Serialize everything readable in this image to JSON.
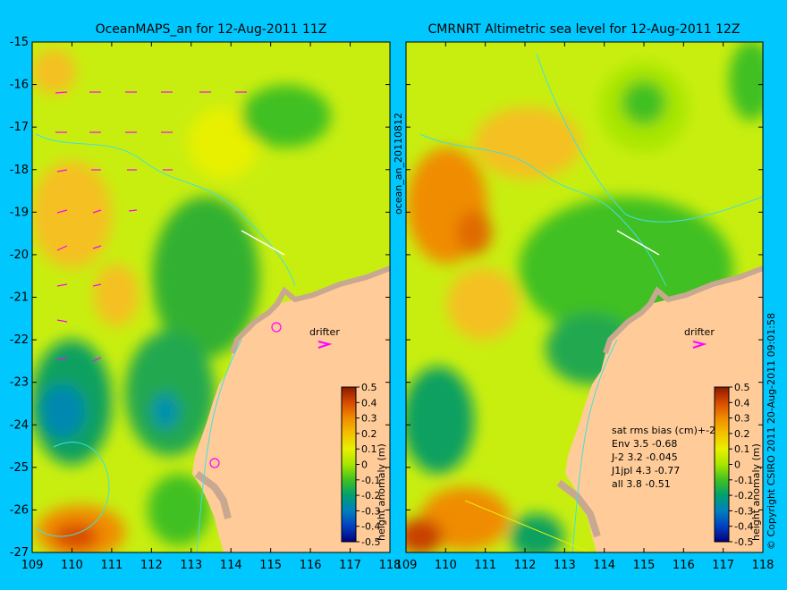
{
  "left_panel": {
    "title": "OceanMAPS_an for 12-Aug-2011 11Z",
    "drifter_label": "drifter",
    "colorbar_label": "height anomaly (m)",
    "side_label": "ocean_an_20110812"
  },
  "right_panel": {
    "title": "CMRNRT Altimetric sea level  for 12-Aug-2011 12Z",
    "drifter_label": "drifter",
    "colorbar_label": "height anomaly (m)",
    "stats_header": "sat rms bias (cm)+-20",
    "stats": [
      "Env   3.5 -0.68",
      "J-2   3.2 -0.045",
      "J1jpl 4.3 -0.77",
      "all 3.8 -0.51"
    ]
  },
  "copyright": "© Copyright CSIRO 2011  20-Aug-2011 09:01:58",
  "axes": {
    "lat_ticks": [
      "-15",
      "-16",
      "-17",
      "-18",
      "-19",
      "-20",
      "-21",
      "-22",
      "-23",
      "-24",
      "-25",
      "-26",
      "-27"
    ],
    "lon_ticks": [
      "109",
      "110",
      "111",
      "112",
      "113",
      "114",
      "115",
      "116",
      "117",
      "118"
    ]
  },
  "colorbar_ticks": [
    "0.5",
    "0.4",
    "0.3",
    "0.2",
    "0.1",
    "0",
    "-0.1",
    "-0.2",
    "-0.3",
    "-0.4",
    "-0.5"
  ],
  "colors": {
    "background": "#00c8ff",
    "land": "#ffcc99",
    "coast_shelf": "#c8a890",
    "drifter": "#ff00ff"
  }
}
